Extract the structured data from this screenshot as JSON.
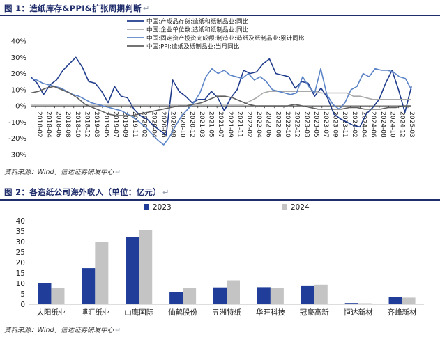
{
  "figure1": {
    "title": "图 1：造纸库存&PPI&扩张周期判断",
    "source": "资料来源：Wind，信达证券研发中心",
    "chart_data": {
      "type": "line",
      "ylim": [
        -30,
        40
      ],
      "yticks": [
        "40%",
        "30%",
        "20%",
        "10%",
        "0%",
        "-10%",
        "-20%",
        "-30%"
      ],
      "ytick_values": [
        40,
        30,
        20,
        10,
        0,
        -10,
        -20,
        -30
      ],
      "xticks": [
        "2018-02",
        "2018-04",
        "2018-06",
        "2018-08",
        "2018-10",
        "2018-12",
        "2019-03",
        "2019-05",
        "2019-07",
        "2019-09",
        "2019-11",
        "2020-02",
        "2020-04",
        "2020-06",
        "2020-08",
        "2020-10",
        "2020-12",
        "2021-03",
        "2021-05",
        "2021-07",
        "2021-09",
        "2021-11",
        "2022-02",
        "2022-04",
        "2022-06",
        "2022-08",
        "2022-10",
        "2022-12",
        "2023-03",
        "2023-05",
        "2023-07",
        "2023-09",
        "2023-11",
        "2024-02",
        "2024-04",
        "2024-06",
        "2024-08",
        "2024-10",
        "2024-12",
        "2025-03"
      ],
      "series": [
        {
          "name": "中国:产成品存货:造纸和纸制品业:同比",
          "color": "#1f3b8c",
          "values": [
            18,
            14,
            7,
            13,
            16,
            22,
            26,
            30,
            24,
            15,
            14,
            9,
            2,
            12,
            6,
            5,
            -2,
            -6,
            -8,
            -12,
            -15,
            -18,
            16,
            9,
            6,
            2,
            4,
            4,
            9,
            5,
            -3,
            5,
            10,
            22,
            20,
            21,
            26,
            29,
            20,
            19,
            18,
            11,
            15,
            14,
            6,
            11,
            5,
            -5,
            -8,
            -10,
            -12,
            -13,
            -5,
            -1,
            4,
            14,
            22,
            10,
            -4,
            12
          ]
        },
        {
          "name": "中国:企业单位数:造纸和纸制品业:同比",
          "color": "#a9a9a9",
          "values": [
            1,
            1,
            1,
            1,
            1,
            1,
            1,
            1,
            1,
            1,
            1,
            1,
            1,
            1,
            1,
            1,
            1,
            1,
            1,
            1,
            1,
            1,
            1,
            1,
            1,
            1,
            1,
            1,
            1,
            1,
            1,
            1,
            1,
            1,
            3,
            5,
            8,
            9,
            9,
            9,
            9,
            9,
            9,
            9,
            9,
            8,
            8,
            8,
            8,
            8,
            6,
            6,
            5,
            4,
            4,
            4,
            4,
            4,
            4,
            4
          ]
        },
        {
          "name": "中国:固定资产投资完成额:制造业:造纸及纸制品业:累计同比",
          "color": "#5b84c7",
          "values": [
            17,
            16,
            14,
            13,
            12,
            11,
            9,
            7,
            6,
            4,
            2,
            1,
            0,
            -1,
            -2,
            -3,
            -5,
            -7,
            -10,
            -13,
            -17,
            -21,
            -24,
            -19,
            -12,
            -6,
            -2,
            2,
            8,
            18,
            23,
            20,
            22,
            19,
            18,
            17,
            20,
            16,
            18,
            15,
            10,
            9,
            8,
            7,
            8,
            18,
            12,
            8,
            23,
            7,
            1,
            -2,
            2,
            10,
            12,
            20,
            18,
            23,
            22,
            22,
            21,
            18,
            17,
            10
          ]
        },
        {
          "name": "中国:PPI:造纸及纸制品业:当月同比",
          "color": "#606060",
          "values": [
            8,
            9,
            11,
            12,
            10,
            8,
            5,
            1,
            -1,
            -3,
            -5,
            -6,
            -6,
            -6,
            -5,
            -4,
            -3,
            -2,
            -1,
            0,
            0,
            1,
            2,
            4,
            6,
            6,
            5,
            3,
            1,
            0,
            0,
            0,
            0,
            0,
            1,
            0,
            -1,
            -2,
            -2,
            -2,
            -2,
            -1,
            -1,
            -2,
            -2,
            -2,
            -1,
            -1,
            0,
            0
          ]
        }
      ]
    }
  },
  "figure2": {
    "title": "图 2：各造纸公司海外收入（单位：亿元）",
    "source": "资料来源：Wind，信达证券研发中心",
    "chart_data": {
      "type": "bar",
      "categories": [
        "太阳纸业",
        "博汇纸业",
        "山鹰国际",
        "仙鹤股份",
        "五洲特纸",
        "华旺科技",
        "冠豪高新",
        "恒达新材",
        "齐峰新材"
      ],
      "series": [
        {
          "name": "2023",
          "color": "#1f3d99",
          "values": [
            10.2,
            17.3,
            32.0,
            6.0,
            8.1,
            8.2,
            8.7,
            0.6,
            3.6
          ]
        },
        {
          "name": "2024",
          "color": "#c4c4c4",
          "values": [
            7.8,
            29.8,
            35.5,
            7.8,
            11.5,
            8.0,
            9.4,
            0.5,
            3.2
          ]
        }
      ],
      "ylim": [
        0,
        40
      ],
      "yticks": [
        "0",
        "5",
        "10",
        "15",
        "20",
        "25",
        "30",
        "35",
        "40"
      ],
      "ytick_values": [
        0,
        5,
        10,
        15,
        20,
        25,
        30,
        35,
        40
      ]
    }
  },
  "return_mark": "↵"
}
